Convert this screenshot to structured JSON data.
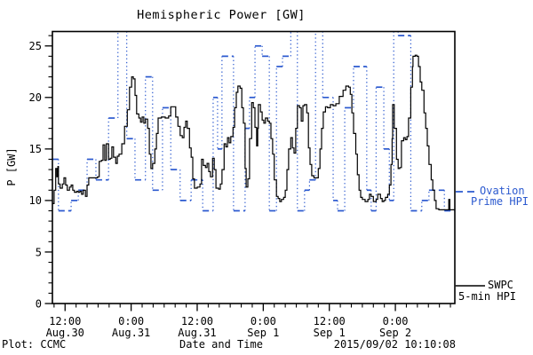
{
  "title": "Hemispheric Power [GW]",
  "footer": {
    "left": "Plot: CCMC",
    "center": "Date and Time",
    "right": "2015/09/02 10:10:08"
  },
  "legend": {
    "ovation": {
      "line1": "Ovation",
      "line2": "Prime HPI",
      "color": "#2b59cf",
      "marker": "dashed"
    },
    "swpc": {
      "line1": "SWPC",
      "line2": "5-min HPI",
      "color": "#000000",
      "marker": "solid"
    }
  },
  "chart_data": {
    "type": "line",
    "title": "Hemispheric Power [GW]",
    "xlabel": "Date and Time",
    "ylabel": "P [GW]",
    "x_unit": "hours since Aug.30 12:00 (year 2015 per footer)",
    "xlim_hours": [
      -2.3,
      70.8
    ],
    "ylim": [
      0,
      26.4
    ],
    "grid": false,
    "y_axis": {
      "label": "P [GW]",
      "major_ticks": [
        0,
        5,
        10,
        15,
        20,
        25
      ],
      "minor_step": 1
    },
    "x_axis": {
      "minor_step_hours": 2,
      "major_ticks": [
        {
          "t": 0,
          "time": "12:00",
          "date": "Aug.30"
        },
        {
          "t": 12,
          "time": "0:00",
          "date": "Aug.31"
        },
        {
          "t": 24,
          "time": "12:00",
          "date": "Aug.31"
        },
        {
          "t": 36,
          "time": "0:00",
          "date": "Sep 1"
        },
        {
          "t": 48,
          "time": "12:00",
          "date": "Sep 1"
        },
        {
          "t": 60,
          "time": "0:00",
          "date": "Sep 2"
        }
      ]
    },
    "series": [
      {
        "name": "SWPC 5-min HPI",
        "color": "#000000",
        "style": "solid-step",
        "points_t_gw": [
          [
            -2.3,
            9.7
          ],
          [
            -2.0,
            11.0
          ],
          [
            -1.7,
            13.1
          ],
          [
            -1.5,
            12.3
          ],
          [
            -1.3,
            13.3
          ],
          [
            -1.2,
            11.6
          ],
          [
            -0.9,
            11.2
          ],
          [
            -0.5,
            11.6
          ],
          [
            -0.2,
            12.2
          ],
          [
            0.1,
            11.5
          ],
          [
            0.4,
            11.0
          ],
          [
            0.8,
            11.3
          ],
          [
            1.1,
            11.5
          ],
          [
            1.4,
            11.0
          ],
          [
            1.7,
            10.8
          ],
          [
            2.1,
            10.9
          ],
          [
            2.4,
            10.8
          ],
          [
            2.7,
            10.9
          ],
          [
            3.0,
            10.6
          ],
          [
            3.3,
            11.0
          ],
          [
            3.7,
            10.4
          ],
          [
            4.0,
            11.5
          ],
          [
            4.3,
            12.2
          ],
          [
            5.0,
            12.2
          ],
          [
            5.6,
            12.2
          ],
          [
            5.9,
            12.3
          ],
          [
            6.2,
            13.8
          ],
          [
            6.6,
            13.9
          ],
          [
            6.9,
            15.4
          ],
          [
            7.2,
            13.9
          ],
          [
            7.5,
            15.5
          ],
          [
            7.9,
            14.0
          ],
          [
            8.2,
            14.1
          ],
          [
            8.5,
            15.2
          ],
          [
            8.8,
            14.2
          ],
          [
            9.2,
            13.6
          ],
          [
            9.5,
            14.3
          ],
          [
            9.8,
            14.5
          ],
          [
            10.3,
            15.5
          ],
          [
            10.8,
            17.2
          ],
          [
            11.3,
            18.8
          ],
          [
            11.7,
            21.0
          ],
          [
            12.1,
            22.0
          ],
          [
            12.4,
            21.8
          ],
          [
            12.7,
            20.2
          ],
          [
            13.0,
            18.4
          ],
          [
            13.4,
            18.0
          ],
          [
            13.7,
            17.6
          ],
          [
            14.0,
            18.1
          ],
          [
            14.3,
            17.5
          ],
          [
            14.6,
            17.9
          ],
          [
            15.0,
            17.0
          ],
          [
            15.3,
            14.5
          ],
          [
            15.6,
            13.1
          ],
          [
            15.9,
            13.6
          ],
          [
            16.3,
            15.0
          ],
          [
            16.6,
            16.5
          ],
          [
            16.9,
            18.0
          ],
          [
            17.5,
            18.1
          ],
          [
            18.2,
            18.0
          ],
          [
            18.8,
            18.2
          ],
          [
            19.2,
            19.1
          ],
          [
            19.8,
            19.1
          ],
          [
            20.1,
            18.1
          ],
          [
            20.5,
            17.2
          ],
          [
            20.9,
            16.3
          ],
          [
            21.3,
            16.1
          ],
          [
            21.6,
            17.1
          ],
          [
            21.9,
            17.7
          ],
          [
            22.2,
            17.0
          ],
          [
            22.6,
            15.1
          ],
          [
            22.9,
            14.2
          ],
          [
            23.2,
            12.1
          ],
          [
            23.5,
            11.2
          ],
          [
            24.0,
            11.3
          ],
          [
            24.5,
            11.6
          ],
          [
            24.8,
            14.0
          ],
          [
            25.1,
            13.4
          ],
          [
            25.5,
            13.2
          ],
          [
            25.8,
            13.6
          ],
          [
            26.1,
            12.8
          ],
          [
            26.4,
            12.3
          ],
          [
            26.8,
            14.1
          ],
          [
            27.1,
            13.0
          ],
          [
            27.4,
            11.2
          ],
          [
            27.9,
            11.1
          ],
          [
            28.2,
            11.6
          ],
          [
            28.5,
            13.0
          ],
          [
            28.9,
            15.5
          ],
          [
            29.2,
            15.2
          ],
          [
            29.5,
            16.1
          ],
          [
            29.8,
            15.6
          ],
          [
            30.1,
            16.2
          ],
          [
            30.5,
            17.1
          ],
          [
            30.8,
            19.0
          ],
          [
            31.1,
            20.5
          ],
          [
            31.4,
            21.1
          ],
          [
            31.8,
            20.9
          ],
          [
            32.1,
            19.0
          ],
          [
            32.4,
            17.5
          ],
          [
            32.7,
            13.1
          ],
          [
            32.9,
            11.3
          ],
          [
            33.2,
            12.1
          ],
          [
            33.5,
            16.0
          ],
          [
            33.9,
            19.5
          ],
          [
            34.2,
            19.0
          ],
          [
            34.5,
            17.1
          ],
          [
            34.8,
            15.3
          ],
          [
            35.0,
            17.0
          ],
          [
            35.1,
            19.3
          ],
          [
            35.5,
            18.6
          ],
          [
            35.8,
            17.8
          ],
          [
            36.1,
            17.5
          ],
          [
            36.4,
            18.0
          ],
          [
            36.8,
            17.7
          ],
          [
            37.1,
            17.5
          ],
          [
            37.4,
            16.0
          ],
          [
            37.7,
            14.5
          ],
          [
            38.0,
            12.0
          ],
          [
            38.4,
            10.4
          ],
          [
            38.7,
            10.2
          ],
          [
            39.0,
            9.9
          ],
          [
            39.3,
            10.1
          ],
          [
            39.7,
            10.3
          ],
          [
            40.0,
            11.0
          ],
          [
            40.3,
            13.0
          ],
          [
            40.6,
            15.0
          ],
          [
            41.0,
            16.1
          ],
          [
            41.3,
            15.1
          ],
          [
            41.6,
            14.6
          ],
          [
            41.9,
            17.0
          ],
          [
            42.2,
            19.2
          ],
          [
            42.6,
            19.0
          ],
          [
            42.9,
            17.7
          ],
          [
            43.2,
            19.2
          ],
          [
            43.5,
            19.3
          ],
          [
            43.9,
            18.5
          ],
          [
            44.2,
            15.1
          ],
          [
            44.5,
            13.5
          ],
          [
            44.8,
            12.4
          ],
          [
            45.2,
            12.2
          ],
          [
            45.6,
            12.2
          ],
          [
            46.0,
            13.1
          ],
          [
            46.3,
            15.0
          ],
          [
            46.6,
            17.0
          ],
          [
            46.9,
            18.6
          ],
          [
            47.3,
            19.1
          ],
          [
            47.7,
            19.0
          ],
          [
            48.2,
            19.3
          ],
          [
            48.7,
            19.2
          ],
          [
            49.2,
            19.4
          ],
          [
            49.8,
            20.1
          ],
          [
            50.5,
            20.7
          ],
          [
            51.0,
            21.1
          ],
          [
            51.5,
            21.0
          ],
          [
            51.8,
            20.3
          ],
          [
            52.1,
            18.5
          ],
          [
            52.4,
            16.5
          ],
          [
            52.8,
            14.5
          ],
          [
            53.1,
            12.5
          ],
          [
            53.4,
            11.0
          ],
          [
            53.7,
            10.3
          ],
          [
            54.0,
            10.1
          ],
          [
            54.5,
            9.9
          ],
          [
            55.0,
            10.1
          ],
          [
            55.3,
            10.6
          ],
          [
            55.6,
            10.4
          ],
          [
            56.0,
            9.9
          ],
          [
            56.5,
            10.1
          ],
          [
            56.8,
            10.6
          ],
          [
            57.3,
            10.2
          ],
          [
            57.6,
            9.9
          ],
          [
            57.9,
            10.0
          ],
          [
            58.2,
            10.3
          ],
          [
            58.6,
            10.6
          ],
          [
            58.9,
            11.5
          ],
          [
            59.2,
            13.5
          ],
          [
            59.4,
            16.0
          ],
          [
            59.5,
            19.3
          ],
          [
            59.8,
            17.0
          ],
          [
            60.2,
            14.0
          ],
          [
            60.5,
            13.1
          ],
          [
            60.8,
            13.2
          ],
          [
            61.1,
            15.8
          ],
          [
            61.5,
            16.1
          ],
          [
            61.8,
            15.9
          ],
          [
            62.1,
            16.2
          ],
          [
            62.4,
            18.0
          ],
          [
            62.8,
            21.0
          ],
          [
            63.1,
            23.0
          ],
          [
            63.2,
            24.0
          ],
          [
            63.6,
            24.1
          ],
          [
            63.9,
            24.0
          ],
          [
            64.2,
            23.0
          ],
          [
            64.5,
            21.5
          ],
          [
            64.8,
            20.7
          ],
          [
            65.2,
            18.5
          ],
          [
            65.5,
            17.0
          ],
          [
            65.8,
            15.3
          ],
          [
            66.1,
            13.5
          ],
          [
            66.5,
            12.0
          ],
          [
            66.8,
            11.0
          ],
          [
            67.1,
            10.0
          ],
          [
            67.4,
            9.2
          ],
          [
            67.9,
            9.1
          ],
          [
            68.6,
            9.1
          ],
          [
            69.2,
            9.1
          ],
          [
            69.5,
            9.1
          ],
          [
            69.7,
            10.1
          ],
          [
            69.9,
            9.1
          ],
          [
            70.3,
            9.1
          ],
          [
            70.8,
            9.1
          ]
        ]
      },
      {
        "name": "Ovation Prime HPI",
        "color": "#2b59cf",
        "style": "dashed-step",
        "note": "gw value 27 means off-scale above plot top; only dotted verticals visible",
        "steps_t1_t2_gw": [
          [
            -2.3,
            -1.2,
            14
          ],
          [
            -1.2,
            1.1,
            9
          ],
          [
            1.1,
            2.4,
            10
          ],
          [
            2.4,
            4.0,
            11
          ],
          [
            4.0,
            5.6,
            14
          ],
          [
            5.6,
            7.9,
            12
          ],
          [
            7.9,
            9.6,
            18
          ],
          [
            9.6,
            11.2,
            27
          ],
          [
            11.2,
            12.7,
            16
          ],
          [
            12.7,
            14.6,
            12
          ],
          [
            14.6,
            15.9,
            22
          ],
          [
            15.9,
            17.7,
            11
          ],
          [
            17.7,
            19.2,
            19
          ],
          [
            19.2,
            20.9,
            13
          ],
          [
            20.9,
            22.9,
            10
          ],
          [
            22.9,
            25.0,
            12
          ],
          [
            25.0,
            26.9,
            9
          ],
          [
            26.9,
            27.7,
            20
          ],
          [
            27.7,
            28.5,
            15
          ],
          [
            28.5,
            30.6,
            24
          ],
          [
            30.6,
            32.7,
            9
          ],
          [
            32.7,
            33.5,
            17
          ],
          [
            33.5,
            34.5,
            20
          ],
          [
            34.5,
            35.8,
            25
          ],
          [
            35.8,
            37.1,
            24
          ],
          [
            37.1,
            38.4,
            9
          ],
          [
            38.4,
            39.5,
            23
          ],
          [
            39.5,
            41.0,
            24
          ],
          [
            41.0,
            42.2,
            27
          ],
          [
            42.2,
            43.5,
            9
          ],
          [
            43.5,
            44.4,
            11
          ],
          [
            44.4,
            45.5,
            12
          ],
          [
            45.5,
            46.8,
            27
          ],
          [
            46.8,
            48.7,
            20
          ],
          [
            48.7,
            49.5,
            10
          ],
          [
            49.5,
            50.8,
            9
          ],
          [
            50.8,
            52.4,
            19
          ],
          [
            52.4,
            54.8,
            23
          ],
          [
            54.8,
            55.6,
            11
          ],
          [
            55.6,
            56.5,
            9
          ],
          [
            56.5,
            57.9,
            21
          ],
          [
            57.9,
            58.9,
            15
          ],
          [
            58.9,
            59.7,
            10
          ],
          [
            59.7,
            60.5,
            27
          ],
          [
            60.5,
            62.8,
            26
          ],
          [
            62.8,
            64.8,
            9
          ],
          [
            64.8,
            66.1,
            10
          ],
          [
            66.1,
            68.9,
            11
          ],
          [
            68.9,
            70.8,
            9
          ]
        ]
      }
    ],
    "legend_position": "right-outside"
  }
}
